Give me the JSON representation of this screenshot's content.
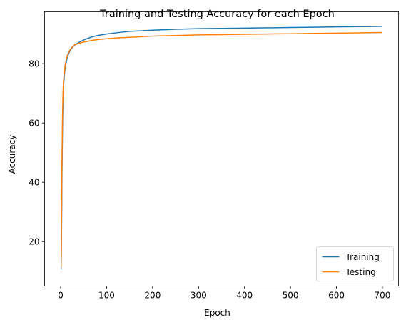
{
  "chart_data": {
    "type": "line",
    "title": "Training and Testing Accuracy for each Epoch",
    "xlabel": "Epoch",
    "ylabel": "Accuracy",
    "xlim": [
      -35,
      735
    ],
    "ylim": [
      5,
      97.5
    ],
    "xticks": [
      0,
      100,
      200,
      300,
      400,
      500,
      600,
      700
    ],
    "yticks": [
      20,
      40,
      60,
      80
    ],
    "grid": false,
    "legend_position": "lower-right",
    "series": [
      {
        "name": "Training",
        "color": "#1f77b4",
        "points": [
          [
            1,
            10.5
          ],
          [
            2,
            25
          ],
          [
            3,
            45
          ],
          [
            4,
            58
          ],
          [
            5,
            67
          ],
          [
            6,
            72
          ],
          [
            8,
            76
          ],
          [
            10,
            79
          ],
          [
            15,
            82.5
          ],
          [
            20,
            84.3
          ],
          [
            25,
            85.4
          ],
          [
            30,
            86.2
          ],
          [
            40,
            87.2
          ],
          [
            50,
            88.0
          ],
          [
            60,
            88.6
          ],
          [
            70,
            89.1
          ],
          [
            80,
            89.5
          ],
          [
            100,
            90.0
          ],
          [
            125,
            90.5
          ],
          [
            150,
            90.9
          ],
          [
            175,
            91.1
          ],
          [
            200,
            91.3
          ],
          [
            250,
            91.6
          ],
          [
            300,
            91.8
          ],
          [
            350,
            91.9
          ],
          [
            400,
            92.0
          ],
          [
            450,
            92.1
          ],
          [
            500,
            92.2
          ],
          [
            550,
            92.3
          ],
          [
            600,
            92.4
          ],
          [
            650,
            92.5
          ],
          [
            700,
            92.6
          ]
        ]
      },
      {
        "name": "Testing",
        "color": "#ff7f0e",
        "points": [
          [
            1,
            11
          ],
          [
            2,
            30
          ],
          [
            3,
            50
          ],
          [
            4,
            62
          ],
          [
            5,
            70
          ],
          [
            6,
            74
          ],
          [
            8,
            77
          ],
          [
            10,
            80
          ],
          [
            15,
            83
          ],
          [
            20,
            84.6
          ],
          [
            25,
            85.6
          ],
          [
            30,
            86.3
          ],
          [
            40,
            86.9
          ],
          [
            50,
            87.3
          ],
          [
            60,
            87.6
          ],
          [
            70,
            87.9
          ],
          [
            80,
            88.1
          ],
          [
            100,
            88.4
          ],
          [
            125,
            88.7
          ],
          [
            150,
            88.9
          ],
          [
            175,
            89.1
          ],
          [
            200,
            89.3
          ],
          [
            250,
            89.5
          ],
          [
            300,
            89.7
          ],
          [
            350,
            89.8
          ],
          [
            400,
            89.9
          ],
          [
            450,
            90.0
          ],
          [
            500,
            90.1
          ],
          [
            550,
            90.2
          ],
          [
            600,
            90.3
          ],
          [
            650,
            90.4
          ],
          [
            700,
            90.5
          ]
        ]
      }
    ]
  }
}
